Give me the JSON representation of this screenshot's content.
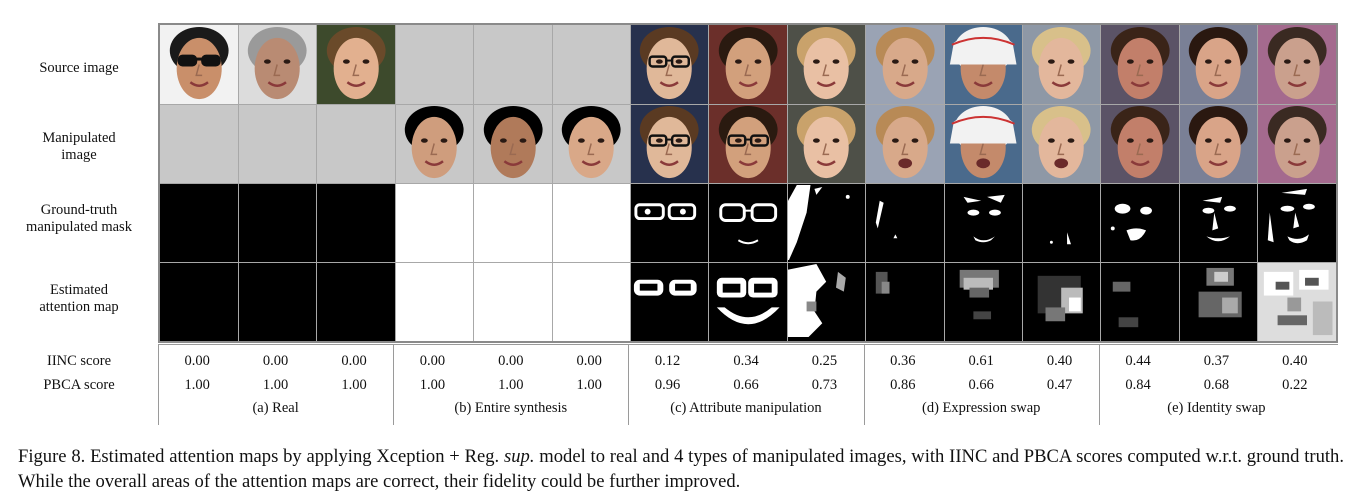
{
  "row_labels": {
    "source": "Source image",
    "manipulated_1": "Manipulated",
    "manipulated_2": "image",
    "gt_1": "Ground-truth",
    "gt_2": "manipulated mask",
    "est_1": "Estimated",
    "est_2": "attention map"
  },
  "score_labels": {
    "iinc": "IINC score",
    "pbca": "PBCA score"
  },
  "groups": [
    {
      "label": "(a) Real",
      "iinc": [
        "0.00",
        "0.00",
        "0.00"
      ],
      "pbca": [
        "1.00",
        "1.00",
        "1.00"
      ]
    },
    {
      "label": "(b) Entire synthesis",
      "iinc": [
        "0.00",
        "0.00",
        "0.00"
      ],
      "pbca": [
        "1.00",
        "1.00",
        "1.00"
      ]
    },
    {
      "label": "(c) Attribute manipulation",
      "iinc": [
        "0.12",
        "0.34",
        "0.25"
      ],
      "pbca": [
        "0.96",
        "0.66",
        "0.73"
      ]
    },
    {
      "label": "(d) Expression swap",
      "iinc": [
        "0.36",
        "0.61",
        "0.40"
      ],
      "pbca": [
        "0.86",
        "0.66",
        "0.47"
      ]
    },
    {
      "label": "(e) Identity swap",
      "iinc": [
        "0.44",
        "0.37",
        "0.40"
      ],
      "pbca": [
        "0.84",
        "0.68",
        "0.22"
      ]
    }
  ],
  "caption": {
    "part1": "Figure 8. Estimated attention maps by applying Xception + Reg. ",
    "italic": "sup.",
    "part2": " model to real and 4 types of manipulated images, with IINC and PBCA scores computed w.r.t. ground truth. While the overall areas of the attention maps are correct, their fidelity could be further improved."
  },
  "colors": {
    "placeholder_gray": "#c8c8c8",
    "mask_black": "#000000",
    "mask_white": "#ffffff"
  }
}
